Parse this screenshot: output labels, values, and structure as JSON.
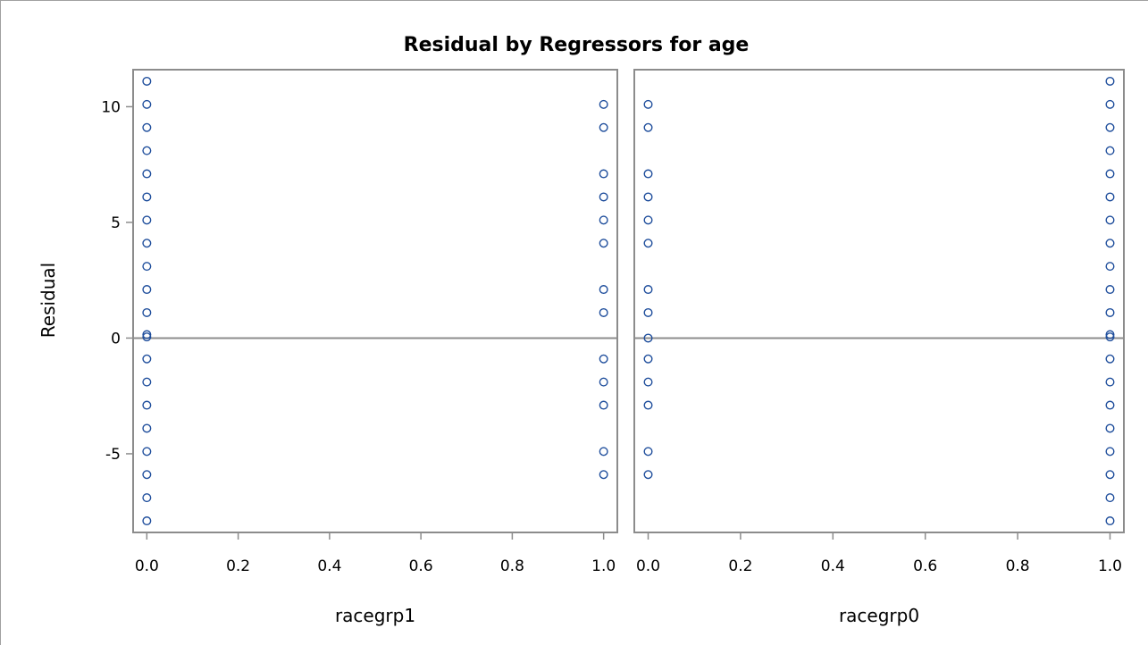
{
  "chart_data": {
    "type": "scatter",
    "title": "Residual by Regressors for age",
    "ylabel": "Residual",
    "ylim": [
      -8.4,
      11.6
    ],
    "yticks": [
      -5,
      0,
      5,
      10
    ],
    "ytick_labels": [
      "-5",
      "0",
      "5",
      "10"
    ],
    "reference_line_y": 0,
    "grid": false,
    "colors": {
      "marker": "#1f4e9c",
      "frame": "#8c8c8c"
    },
    "panels": [
      {
        "xlabel": "racegrp1",
        "xlim": [
          -0.03,
          1.03
        ],
        "xticks": [
          0.0,
          0.2,
          0.4,
          0.6,
          0.8,
          1.0
        ],
        "xtick_labels": [
          "0.0",
          "0.2",
          "0.4",
          "0.6",
          "0.8",
          "1.0"
        ],
        "points": [
          [
            0,
            11.1
          ],
          [
            0,
            10.1
          ],
          [
            0,
            9.1
          ],
          [
            0,
            8.1
          ],
          [
            0,
            7.1
          ],
          [
            0,
            6.1
          ],
          [
            0,
            5.1
          ],
          [
            0,
            4.1
          ],
          [
            0,
            3.1
          ],
          [
            0,
            2.1
          ],
          [
            0,
            1.1
          ],
          [
            0,
            0.15
          ],
          [
            0,
            0.05
          ],
          [
            0,
            -0.9
          ],
          [
            0,
            -1.9
          ],
          [
            0,
            -2.9
          ],
          [
            0,
            -3.9
          ],
          [
            0,
            -4.9
          ],
          [
            0,
            -5.9
          ],
          [
            0,
            -6.9
          ],
          [
            0,
            -7.9
          ],
          [
            1,
            10.1
          ],
          [
            1,
            9.1
          ],
          [
            1,
            7.1
          ],
          [
            1,
            6.1
          ],
          [
            1,
            5.1
          ],
          [
            1,
            4.1
          ],
          [
            1,
            2.1
          ],
          [
            1,
            1.1
          ],
          [
            1,
            -0.9
          ],
          [
            1,
            -1.9
          ],
          [
            1,
            -2.9
          ],
          [
            1,
            -4.9
          ],
          [
            1,
            -5.9
          ]
        ]
      },
      {
        "xlabel": "racegrp0",
        "xlim": [
          -0.03,
          1.03
        ],
        "xticks": [
          0.0,
          0.2,
          0.4,
          0.6,
          0.8,
          1.0
        ],
        "xtick_labels": [
          "0.0",
          "0.2",
          "0.4",
          "0.6",
          "0.8",
          "1.0"
        ],
        "points": [
          [
            0,
            10.1
          ],
          [
            0,
            9.1
          ],
          [
            0,
            7.1
          ],
          [
            0,
            6.1
          ],
          [
            0,
            5.1
          ],
          [
            0,
            4.1
          ],
          [
            0,
            2.1
          ],
          [
            0,
            1.1
          ],
          [
            0,
            0.0
          ],
          [
            0,
            -0.9
          ],
          [
            0,
            -1.9
          ],
          [
            0,
            -2.9
          ],
          [
            0,
            -4.9
          ],
          [
            0,
            -5.9
          ],
          [
            1,
            11.1
          ],
          [
            1,
            10.1
          ],
          [
            1,
            9.1
          ],
          [
            1,
            8.1
          ],
          [
            1,
            7.1
          ],
          [
            1,
            6.1
          ],
          [
            1,
            5.1
          ],
          [
            1,
            4.1
          ],
          [
            1,
            3.1
          ],
          [
            1,
            2.1
          ],
          [
            1,
            1.1
          ],
          [
            1,
            0.15
          ],
          [
            1,
            0.05
          ],
          [
            1,
            -0.9
          ],
          [
            1,
            -1.9
          ],
          [
            1,
            -2.9
          ],
          [
            1,
            -3.9
          ],
          [
            1,
            -4.9
          ],
          [
            1,
            -5.9
          ],
          [
            1,
            -6.9
          ],
          [
            1,
            -7.9
          ]
        ]
      }
    ]
  }
}
